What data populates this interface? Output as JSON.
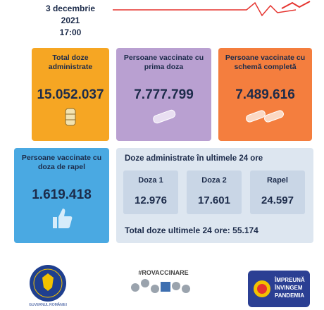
{
  "header": {
    "date": "3 decembrie 2021",
    "time": "17:00"
  },
  "cards": [
    {
      "title": "Total doze administrate",
      "value": "15.052.037"
    },
    {
      "title": "Persoane vaccinate cu prima doza",
      "value": "7.777.799"
    },
    {
      "title": "Persoane vaccinate cu schemă completă",
      "value": "7.489.616"
    },
    {
      "title": "Persoane vaccinate cu doza de rapel",
      "value": "1.619.418"
    }
  ],
  "last_24h": {
    "title": "Doze administrate în ultimele 24 ore",
    "items": [
      {
        "label": "Doza 1",
        "value": "12.976"
      },
      {
        "label": "Doza 2",
        "value": "17.601"
      },
      {
        "label": "Rapel",
        "value": "24.597"
      }
    ],
    "total": "Total doze ultimele 24 ore: 55.174"
  },
  "logos": {
    "government": "GUVERNUL ROMÂNIEI",
    "hashtag": "#ROVACCINARE",
    "campaign": [
      "ÎMPREUNĂ",
      "ÎNVINGEM",
      "PANDEMIA"
    ]
  }
}
